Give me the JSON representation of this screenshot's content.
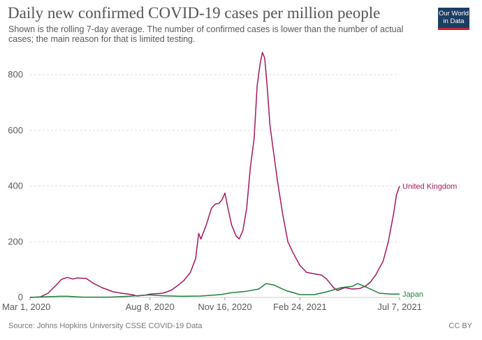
{
  "header": {
    "title": "Daily new confirmed COVID-19 cases per million people",
    "subtitle": "Shown is the rolling 7-day average. The number of confirmed cases is lower than the number of actual cases; the main reason for that is limited testing.",
    "logo_line1": "Our World",
    "logo_line2": "in Data"
  },
  "footer": {
    "source": "Source: Johns Hopkins University CSSE COVID-19 Data",
    "license": "CC BY"
  },
  "colors": {
    "uk": "#a2195e",
    "japan": "#1e7f3c",
    "grid": "#dddddd",
    "logo_bg": "#1d3d63",
    "logo_accent": "#c1272d"
  },
  "chart_data": {
    "type": "line",
    "title": "Daily new confirmed COVID-19 cases per million people",
    "x_start": "Mar 1, 2020",
    "x_end": "Jul 7, 2021",
    "x_ticks": [
      "Mar 1, 2020",
      "Aug 8, 2020",
      "Nov 16, 2020",
      "Feb 24, 2021",
      "Jul 7, 2021"
    ],
    "y_ticks": [
      0,
      200,
      400,
      600,
      800
    ],
    "ylim": [
      0,
      880
    ],
    "grid": true,
    "series": [
      {
        "name": "United Kingdom",
        "color": "#a2195e",
        "points": [
          [
            "Mar 1, 2020",
            0
          ],
          [
            "Mar 15, 2020",
            2
          ],
          [
            "Mar 25, 2020",
            15
          ],
          [
            "Apr 5, 2020",
            45
          ],
          [
            "Apr 12, 2020",
            65
          ],
          [
            "Apr 20, 2020",
            72
          ],
          [
            "Apr 27, 2020",
            66
          ],
          [
            "May 3, 2020",
            70
          ],
          [
            "May 15, 2020",
            68
          ],
          [
            "May 25, 2020",
            50
          ],
          [
            "Jun 5, 2020",
            35
          ],
          [
            "Jun 20, 2020",
            20
          ],
          [
            "Jul 1, 2020",
            15
          ],
          [
            "Jul 15, 2020",
            10
          ],
          [
            "Jul 22, 2020",
            5
          ],
          [
            "Aug 1, 2020",
            8
          ],
          [
            "Aug 8, 2020",
            12
          ],
          [
            "Aug 25, 2020",
            15
          ],
          [
            "Sep 5, 2020",
            25
          ],
          [
            "Sep 15, 2020",
            45
          ],
          [
            "Sep 22, 2020",
            60
          ],
          [
            "Oct 1, 2020",
            90
          ],
          [
            "Oct 8, 2020",
            140
          ],
          [
            "Oct 12, 2020",
            230
          ],
          [
            "Oct 15, 2020",
            210
          ],
          [
            "Oct 22, 2020",
            260
          ],
          [
            "Oct 29, 2020",
            320
          ],
          [
            "Nov 3, 2020",
            335
          ],
          [
            "Nov 8, 2020",
            338
          ],
          [
            "Nov 12, 2020",
            350
          ],
          [
            "Nov 16, 2020",
            375
          ],
          [
            "Nov 20, 2020",
            320
          ],
          [
            "Nov 25, 2020",
            260
          ],
          [
            "Dec 1, 2020",
            220
          ],
          [
            "Dec 5, 2020",
            210
          ],
          [
            "Dec 10, 2020",
            240
          ],
          [
            "Dec 15, 2020",
            320
          ],
          [
            "Dec 20, 2020",
            470
          ],
          [
            "Dec 25, 2020",
            570
          ],
          [
            "Dec 29, 2020",
            760
          ],
          [
            "Jan 2, 2021",
            840
          ],
          [
            "Jan 5, 2021",
            880
          ],
          [
            "Jan 8, 2021",
            860
          ],
          [
            "Jan 11, 2021",
            770
          ],
          [
            "Jan 15, 2021",
            620
          ],
          [
            "Jan 20, 2021",
            520
          ],
          [
            "Jan 25, 2021",
            420
          ],
          [
            "Feb 1, 2021",
            300
          ],
          [
            "Feb 8, 2021",
            200
          ],
          [
            "Feb 15, 2021",
            160
          ],
          [
            "Feb 24, 2021",
            115
          ],
          [
            "Mar 5, 2021",
            90
          ],
          [
            "Mar 15, 2021",
            85
          ],
          [
            "Mar 25, 2021",
            80
          ],
          [
            "Apr 1, 2021",
            65
          ],
          [
            "Apr 10, 2021",
            35
          ],
          [
            "Apr 15, 2021",
            25
          ],
          [
            "Apr 25, 2021",
            35
          ],
          [
            "May 5, 2021",
            30
          ],
          [
            "May 15, 2021",
            32
          ],
          [
            "May 22, 2021",
            40
          ],
          [
            "May 29, 2021",
            55
          ],
          [
            "Jun 5, 2021",
            80
          ],
          [
            "Jun 15, 2021",
            130
          ],
          [
            "Jun 22, 2021",
            200
          ],
          [
            "Jun 29, 2021",
            300
          ],
          [
            "Jul 3, 2021",
            370
          ],
          [
            "Jul 7, 2021",
            400
          ]
        ]
      },
      {
        "name": "Japan",
        "color": "#1e7f3c",
        "points": [
          [
            "Mar 1, 2020",
            0
          ],
          [
            "Apr 10, 2020",
            4
          ],
          [
            "Apr 20, 2020",
            4
          ],
          [
            "May 10, 2020",
            1
          ],
          [
            "Jun 15, 2020",
            1
          ],
          [
            "Jul 10, 2020",
            4
          ],
          [
            "Aug 8, 2020",
            9
          ],
          [
            "Aug 25, 2020",
            6
          ],
          [
            "Sep 20, 2020",
            4
          ],
          [
            "Oct 15, 2020",
            5
          ],
          [
            "Nov 10, 2020",
            10
          ],
          [
            "Nov 25, 2020",
            17
          ],
          [
            "Dec 15, 2020",
            22
          ],
          [
            "Dec 31, 2020",
            30
          ],
          [
            "Jan 10, 2021",
            50
          ],
          [
            "Jan 20, 2021",
            45
          ],
          [
            "Feb 5, 2021",
            25
          ],
          [
            "Feb 24, 2021",
            10
          ],
          [
            "Mar 15, 2021",
            10
          ],
          [
            "Apr 1, 2021",
            20
          ],
          [
            "Apr 20, 2021",
            35
          ],
          [
            "May 5, 2021",
            40
          ],
          [
            "May 12, 2021",
            50
          ],
          [
            "May 25, 2021",
            35
          ],
          [
            "Jun 10, 2021",
            15
          ],
          [
            "Jun 25, 2021",
            12
          ],
          [
            "Jul 7, 2021",
            12
          ]
        ]
      }
    ]
  }
}
